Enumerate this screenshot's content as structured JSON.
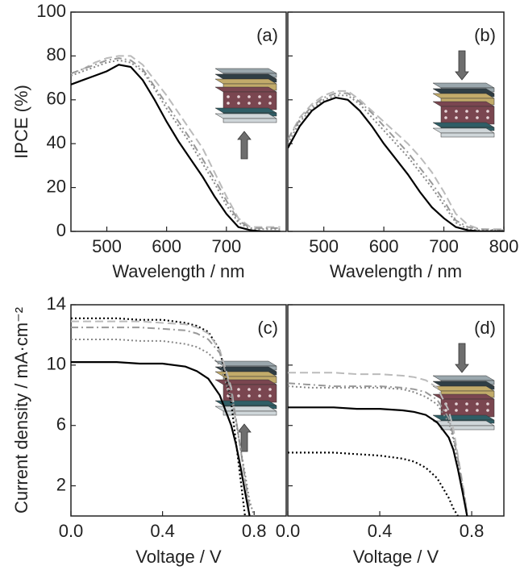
{
  "chart_data": [
    {
      "type": "line",
      "panel_label": "(a)",
      "y_label": "IPCE (%)",
      "x_label": "Wavelength / nm",
      "xlim": [
        440,
        800
      ],
      "ylim": [
        0,
        100
      ],
      "xticks": [
        500,
        600,
        700
      ],
      "yticks": [
        0,
        20,
        40,
        60,
        80,
        100
      ],
      "x": [
        440,
        460,
        480,
        500,
        520,
        540,
        560,
        580,
        600,
        620,
        640,
        660,
        680,
        700,
        720,
        740,
        760,
        790
      ],
      "series": [
        {
          "color": "#bbbbbb",
          "style": "dashed",
          "values": [
            72,
            74,
            77,
            79,
            80,
            80,
            76,
            69,
            62,
            54,
            46,
            38,
            27,
            16,
            6,
            2,
            2,
            2
          ]
        },
        {
          "color": "#999999",
          "style": "dashdot",
          "values": [
            72,
            74,
            76,
            78,
            79,
            78,
            74,
            66,
            58,
            50,
            42,
            33,
            24,
            14,
            5,
            1.5,
            1.5,
            1.5
          ]
        },
        {
          "color": "#888888",
          "style": "dotted",
          "values": [
            71,
            73,
            75,
            77,
            78,
            77,
            73,
            65,
            56,
            48,
            40,
            31,
            22,
            12,
            4,
            1,
            1,
            1
          ]
        },
        {
          "color": "#000000",
          "style": "solid",
          "values": [
            67,
            69,
            71,
            73,
            76,
            75,
            69,
            60,
            50,
            41,
            33,
            25,
            16,
            8,
            2,
            0.5,
            0,
            0
          ]
        }
      ]
    },
    {
      "type": "line",
      "panel_label": "(b)",
      "x_label": "Wavelength / nm",
      "xlim": [
        440,
        800
      ],
      "ylim": [
        0,
        100
      ],
      "xticks": [
        500,
        600,
        700,
        800
      ],
      "yticks": [
        0,
        20,
        40,
        60,
        80,
        100
      ],
      "x": [
        440,
        460,
        480,
        500,
        520,
        540,
        560,
        580,
        600,
        620,
        640,
        660,
        680,
        700,
        720,
        740,
        760,
        800
      ],
      "series": [
        {
          "color": "#bbbbbb",
          "style": "dashed",
          "values": [
            42,
            52,
            58,
            62,
            64,
            64,
            60,
            55,
            50,
            45,
            40,
            34,
            27,
            18,
            8,
            3,
            1,
            1
          ]
        },
        {
          "color": "#999999",
          "style": "dashdot",
          "values": [
            42,
            51,
            57,
            61,
            63,
            63,
            59,
            54,
            48,
            42,
            36,
            29,
            22,
            14,
            5,
            2,
            1,
            0.5
          ]
        },
        {
          "color": "#888888",
          "style": "dotted",
          "values": [
            40,
            50,
            56,
            60,
            62,
            62,
            58,
            52,
            46,
            40,
            34,
            27,
            20,
            12,
            4,
            1,
            0.5,
            0.5
          ]
        },
        {
          "color": "#000000",
          "style": "solid",
          "values": [
            38,
            48,
            55,
            59,
            61,
            60,
            55,
            48,
            40,
            33,
            26,
            18,
            11,
            6,
            2,
            0.5,
            0,
            0
          ]
        }
      ]
    },
    {
      "type": "line",
      "panel_label": "(c)",
      "y_label": "Current density / mA·cm⁻²",
      "x_label": "Voltage / V",
      "xlim": [
        0,
        0.94
      ],
      "ylim": [
        0,
        14
      ],
      "xticks": [
        {
          "value": 0,
          "label": "0.0"
        },
        {
          "value": 0.4,
          "label": "0.4"
        },
        {
          "value": 0.8,
          "label": "0.8"
        }
      ],
      "yticks": [
        2,
        6,
        10,
        14
      ],
      "x": [
        0,
        0.1,
        0.2,
        0.3,
        0.4,
        0.5,
        0.55,
        0.6,
        0.65,
        0.7,
        0.72,
        0.74,
        0.76,
        0.78,
        0.8
      ],
      "series": [
        {
          "color": "#000000",
          "style": "dotted",
          "values": [
            13.1,
            13.1,
            13.1,
            13.0,
            13.0,
            12.8,
            12.6,
            12.2,
            11.0,
            7.5,
            5.0,
            2.5,
            0,
            null,
            null
          ]
        },
        {
          "color": "#bbbbbb",
          "style": "dashed",
          "values": [
            12.9,
            12.9,
            12.9,
            12.9,
            12.8,
            12.7,
            12.5,
            12.1,
            11.0,
            8.5,
            6.5,
            4.5,
            2.3,
            0,
            null
          ]
        },
        {
          "color": "#999999",
          "style": "dashdot",
          "values": [
            12.5,
            12.5,
            12.5,
            12.5,
            12.4,
            12.3,
            12.1,
            11.7,
            10.8,
            8.3,
            6.5,
            4.5,
            2.5,
            0.5,
            null
          ]
        },
        {
          "color": "#888888",
          "style": "dotted",
          "values": [
            11.7,
            11.7,
            11.7,
            11.6,
            11.6,
            11.4,
            11.2,
            10.8,
            10.0,
            7.8,
            6.3,
            4.5,
            2.8,
            1.0,
            0
          ]
        },
        {
          "color": "#000000",
          "style": "solid",
          "values": [
            10.2,
            10.2,
            10.2,
            10.1,
            10.1,
            9.9,
            9.6,
            9.1,
            8.0,
            6.0,
            4.8,
            3.3,
            1.6,
            0,
            null
          ]
        }
      ]
    },
    {
      "type": "line",
      "panel_label": "(d)",
      "x_label": "Voltage / V",
      "xlim": [
        0,
        0.94
      ],
      "ylim": [
        0,
        14
      ],
      "xticks": [
        {
          "value": 0,
          "label": "0.0"
        },
        {
          "value": 0.4,
          "label": "0.4"
        },
        {
          "value": 0.8,
          "label": "0.8"
        }
      ],
      "yticks": [
        2,
        6,
        10,
        14
      ],
      "x": [
        0,
        0.1,
        0.2,
        0.3,
        0.4,
        0.5,
        0.55,
        0.6,
        0.65,
        0.7,
        0.72,
        0.74,
        0.76,
        0.78,
        0.8
      ],
      "series": [
        {
          "color": "#bbbbbb",
          "style": "dashed",
          "values": [
            9.5,
            9.5,
            9.5,
            9.4,
            9.4,
            9.3,
            9.2,
            9.0,
            8.5,
            7.0,
            5.8,
            4.0,
            2.2,
            0.3,
            null
          ]
        },
        {
          "color": "#999999",
          "style": "dashdot",
          "values": [
            8.8,
            8.7,
            8.6,
            8.6,
            8.6,
            8.5,
            8.4,
            8.2,
            7.7,
            6.5,
            5.3,
            3.8,
            2.0,
            0.2,
            null
          ]
        },
        {
          "color": "#888888",
          "style": "dotted",
          "values": [
            8.6,
            8.5,
            8.5,
            8.5,
            8.5,
            8.4,
            8.2,
            7.9,
            7.4,
            6.2,
            5.1,
            3.5,
            1.8,
            0,
            null
          ]
        },
        {
          "color": "#000000",
          "style": "solid",
          "values": [
            7.2,
            7.2,
            7.2,
            7.1,
            7.1,
            7.0,
            6.9,
            6.7,
            6.2,
            5.2,
            4.4,
            3.1,
            1.6,
            0,
            null
          ]
        },
        {
          "color": "#000000",
          "style": "dotted",
          "values": [
            4.2,
            4.2,
            4.2,
            4.1,
            4.0,
            3.8,
            3.6,
            3.2,
            2.5,
            1.2,
            0.5,
            0,
            null,
            null,
            null
          ]
        }
      ]
    }
  ]
}
